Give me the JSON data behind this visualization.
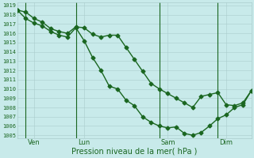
{
  "xlabel": "Pression niveau de la mer( hPa )",
  "bg_color": "#c8eaea",
  "grid_color": "#aacccc",
  "line_color": "#1a6620",
  "ylim": [
    1005,
    1019
  ],
  "yticks": [
    1005,
    1006,
    1007,
    1008,
    1009,
    1010,
    1011,
    1012,
    1013,
    1014,
    1015,
    1016,
    1017,
    1018,
    1019
  ],
  "xlim": [
    0,
    28
  ],
  "num_xgrid": 28,
  "xtick_day_positions": [
    2,
    8,
    18,
    25
  ],
  "xtick_day_labels": [
    "Ven",
    "Lun",
    "Sam",
    "Dim"
  ],
  "vline_positions": [
    1,
    7,
    17,
    24
  ],
  "line1_x": [
    0,
    1,
    2,
    3,
    4,
    5,
    6,
    7,
    8,
    9,
    10,
    11,
    12,
    13,
    14,
    15,
    16,
    17,
    18,
    19,
    20,
    21,
    22,
    23,
    24,
    25,
    26,
    27,
    28
  ],
  "line1_y": [
    1018.5,
    1018.3,
    1017.6,
    1017.2,
    1016.5,
    1016.2,
    1016.0,
    1016.7,
    1016.6,
    1015.9,
    1015.6,
    1015.8,
    1015.8,
    1014.5,
    1013.2,
    1011.9,
    1010.6,
    1010.0,
    1009.5,
    1009.0,
    1008.5,
    1008.0,
    1009.2,
    1009.4,
    1009.6,
    1008.3,
    1008.2,
    1008.5,
    1009.8
  ],
  "line2_x": [
    0,
    1,
    2,
    3,
    4,
    5,
    6,
    7,
    8,
    9,
    10,
    11,
    12,
    13,
    14,
    15,
    16,
    17,
    18,
    19,
    20,
    21,
    22,
    23,
    24,
    25,
    26,
    27,
    28
  ],
  "line2_y": [
    1018.5,
    1017.6,
    1017.1,
    1016.8,
    1016.2,
    1015.8,
    1015.6,
    1016.6,
    1015.2,
    1013.4,
    1012.0,
    1010.3,
    1010.0,
    1008.8,
    1008.2,
    1007.0,
    1006.4,
    1006.0,
    1005.8,
    1005.9,
    1005.2,
    1005.0,
    1005.3,
    1006.0,
    1006.8,
    1007.2,
    1008.0,
    1008.3,
    1009.8
  ]
}
